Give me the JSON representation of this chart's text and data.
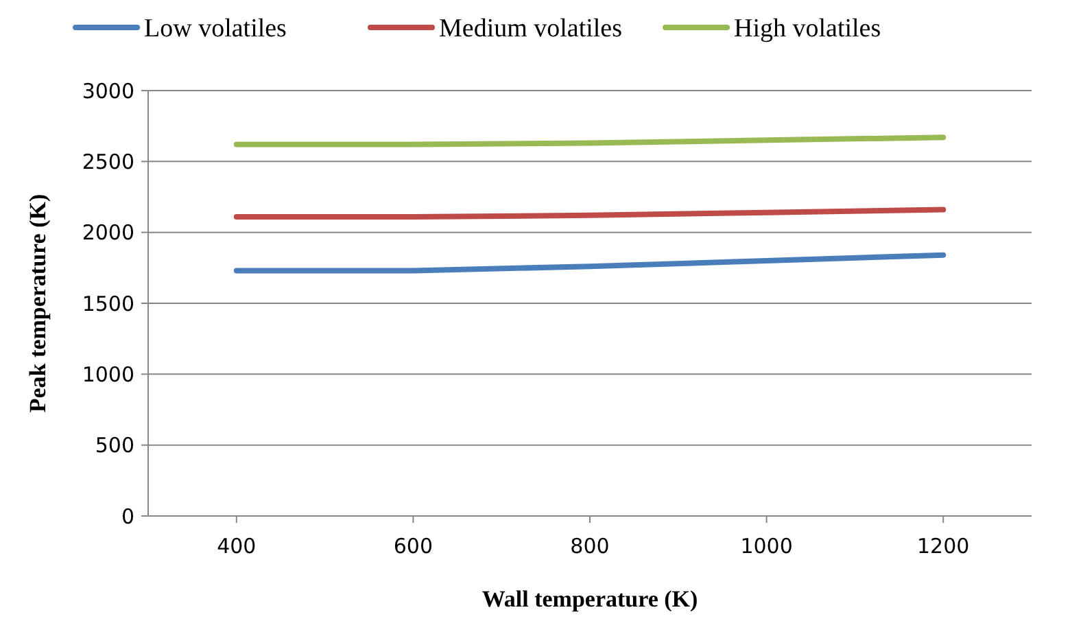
{
  "chart_data": {
    "type": "line",
    "xlabel": "Wall temperature  (K)",
    "ylabel": "Peak temperature  (K)",
    "x": [
      400,
      600,
      800,
      1000,
      1200
    ],
    "series": [
      {
        "name": "Low volatiles",
        "color": "#4a7ebb",
        "values": [
          1730,
          1730,
          1760,
          1800,
          1840
        ]
      },
      {
        "name": "Medium volatiles",
        "color": "#be4b48",
        "values": [
          2110,
          2110,
          2120,
          2140,
          2160
        ]
      },
      {
        "name": "High volatiles",
        "color": "#98b954",
        "values": [
          2620,
          2620,
          2630,
          2650,
          2670
        ]
      }
    ],
    "xlim": [
      300,
      1300
    ],
    "xticks": [
      400,
      600,
      800,
      1000,
      1200
    ],
    "ylim": [
      0,
      3000
    ],
    "yticks": [
      0,
      500,
      1000,
      1500,
      2000,
      2500,
      3000
    ],
    "grid": "y",
    "legend": "top",
    "marker": "none",
    "line_style": "solid"
  }
}
